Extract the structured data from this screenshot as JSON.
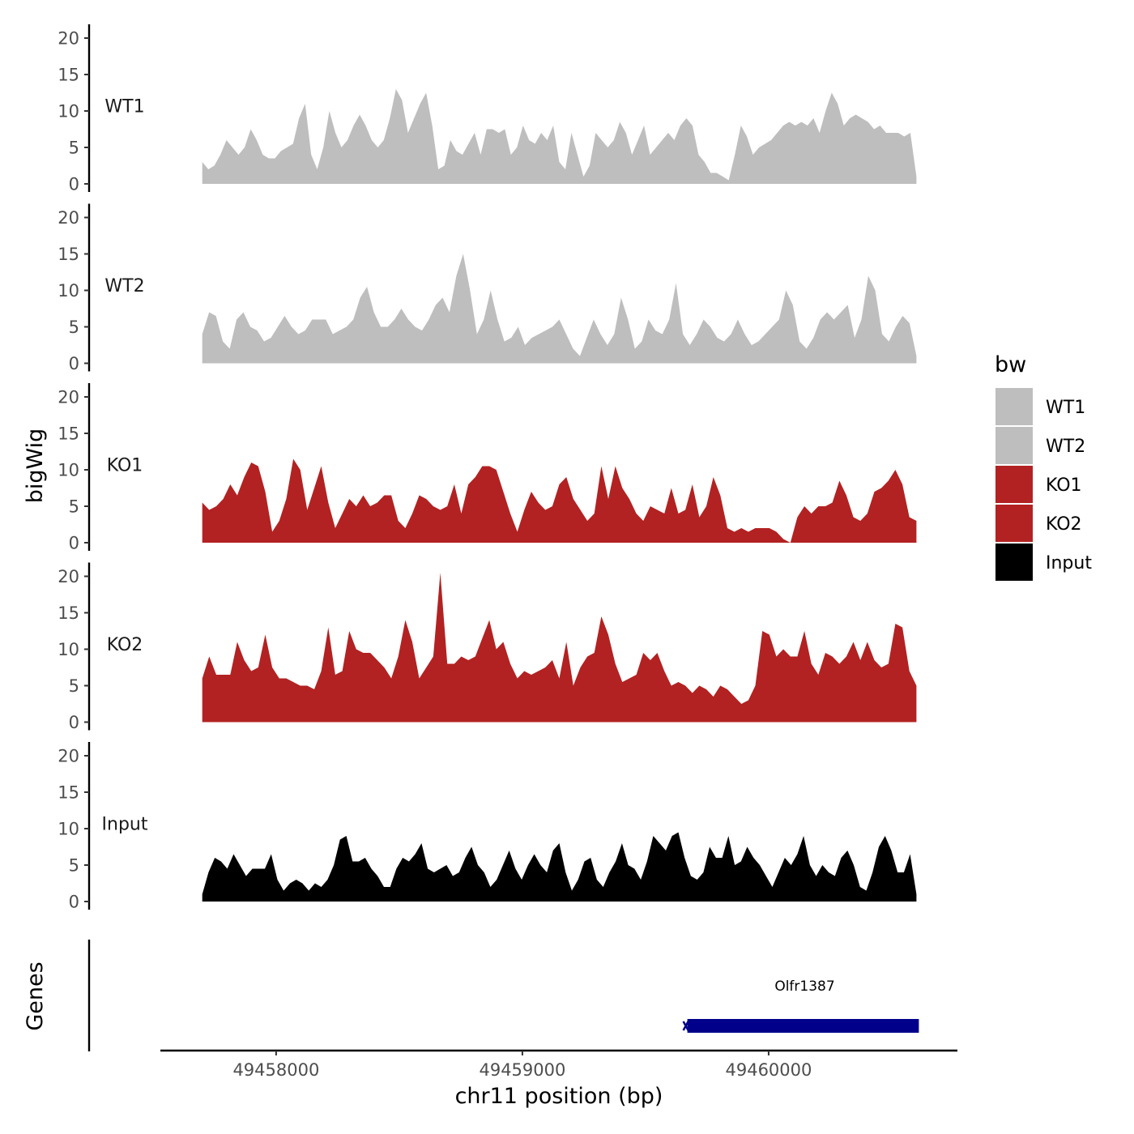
{
  "chart_data": {
    "type": "area",
    "xlabel": "chr11 position (bp)",
    "ylabel": "bigWig",
    "genes_label": "Genes",
    "xlim": [
      49457530,
      49460760
    ],
    "ylim": [
      0,
      21
    ],
    "x_ticks": [
      49458000,
      49459000,
      49460000
    ],
    "x_tick_labels": [
      "49458000",
      "49459000",
      "49460000"
    ],
    "y_ticks": [
      0,
      5,
      10,
      15,
      20
    ],
    "y_tick_labels": [
      "0",
      "5",
      "10",
      "15",
      "20"
    ],
    "x_start": 49457700,
    "x_end": 49460600,
    "legend": {
      "title": "bw",
      "position": "right",
      "entries": [
        {
          "label": "WT1",
          "color": "#bebebe"
        },
        {
          "label": "WT2",
          "color": "#bebebe"
        },
        {
          "label": "KO1",
          "color": "#b22222"
        },
        {
          "label": "KO2",
          "color": "#b22222"
        },
        {
          "label": "Input",
          "color": "#000000"
        }
      ]
    },
    "series": [
      {
        "name": "WT1",
        "color": "#bebebe",
        "values": [
          3,
          2,
          2.5,
          4,
          6,
          5,
          4,
          5,
          7.5,
          6,
          4,
          3.5,
          3.5,
          4.5,
          5,
          5.5,
          9,
          11,
          4,
          2,
          5,
          10,
          7,
          5,
          6,
          8,
          9.5,
          8,
          6,
          5,
          6,
          9,
          13,
          11.5,
          7,
          9,
          11,
          12.5,
          8,
          2,
          2.5,
          6,
          4.5,
          4,
          5.5,
          7,
          4,
          7.5,
          7.5,
          7,
          7.5,
          4,
          5,
          8,
          6,
          5.5,
          7,
          6,
          8,
          3,
          2,
          7,
          4,
          1,
          2.5,
          7,
          6,
          5,
          6,
          8.5,
          7,
          4,
          6,
          8,
          4,
          5,
          6,
          7,
          6,
          8,
          9,
          8,
          4,
          3,
          1.5,
          1.5,
          1,
          0.5,
          4,
          8,
          6.5,
          4,
          5,
          5.5,
          6,
          7,
          8,
          8.5,
          8,
          8.5,
          8,
          9,
          7,
          10,
          12.5,
          11,
          8,
          9,
          9.5,
          9,
          8.5,
          7.5,
          8,
          7,
          7,
          7,
          6.5,
          7,
          1
        ]
      },
      {
        "name": "WT2",
        "color": "#bebebe",
        "values": [
          4,
          7,
          6.5,
          3,
          2,
          6,
          7,
          5,
          4.5,
          3,
          3.5,
          5,
          6.5,
          5,
          4,
          4.5,
          6,
          6,
          6,
          4,
          4.5,
          5,
          6,
          9,
          10.5,
          7,
          5,
          5,
          6,
          7.5,
          6,
          5,
          4.5,
          6,
          8,
          9,
          7,
          12,
          15,
          10,
          4,
          6,
          10,
          6,
          3,
          3.5,
          5,
          2.5,
          3.5,
          4,
          4.5,
          5,
          6,
          4,
          2,
          1,
          3.5,
          6,
          4,
          2.5,
          4,
          9,
          6,
          2,
          3,
          6,
          4.5,
          4,
          6,
          11,
          4,
          2.5,
          4,
          6,
          5,
          3.5,
          3,
          4,
          6,
          4,
          2.5,
          3,
          4,
          5,
          6,
          10,
          8,
          3,
          2,
          3.5,
          6,
          7,
          6,
          7,
          8,
          3.5,
          6,
          12,
          10,
          4,
          3,
          5,
          6.5,
          5.5,
          1
        ]
      },
      {
        "name": "KO1",
        "color": "#b22222",
        "values": [
          5.5,
          4.5,
          5,
          6,
          8,
          6.5,
          9,
          11,
          10.5,
          7,
          1.5,
          3,
          6,
          11.5,
          10,
          4.5,
          7.5,
          10.5,
          5.5,
          2,
          4,
          6,
          5,
          6.5,
          5,
          5.5,
          6.5,
          6.5,
          3,
          2,
          4,
          6.5,
          6,
          5,
          4.5,
          5,
          8,
          4,
          8,
          9,
          10.5,
          10.5,
          10,
          7,
          4,
          1.5,
          4.5,
          7,
          5.5,
          4.5,
          5,
          8,
          9,
          6,
          4.5,
          3,
          4,
          10.5,
          6,
          10.5,
          7.5,
          6,
          4,
          3,
          5,
          4.5,
          4,
          7.5,
          4,
          4.5,
          8,
          3.5,
          5,
          9,
          6.5,
          2,
          1.5,
          2,
          1.5,
          2,
          2,
          2,
          1.5,
          0.5,
          0,
          3.5,
          5,
          4,
          5,
          5,
          5.5,
          8.5,
          6.5,
          3.5,
          3,
          4,
          7,
          7.5,
          8.5,
          10,
          8,
          3.5,
          3
        ]
      },
      {
        "name": "KO2",
        "color": "#b22222",
        "values": [
          6,
          9,
          6.5,
          6.5,
          6.5,
          11,
          8.5,
          7,
          7.5,
          12,
          7.5,
          6,
          6,
          5.5,
          5,
          5,
          4.5,
          7,
          13,
          6.5,
          7,
          12.5,
          10,
          9.5,
          9.5,
          8.5,
          7.5,
          6,
          9,
          14,
          11,
          6,
          7.5,
          9,
          20.5,
          8,
          8,
          9,
          8.5,
          9,
          11.5,
          14,
          10,
          11,
          8,
          6,
          7,
          6.5,
          7,
          7.5,
          8.5,
          6,
          11,
          5,
          7.5,
          9,
          9.5,
          14.5,
          12,
          8,
          5.5,
          6,
          6.5,
          9.5,
          8.5,
          9.5,
          7,
          5,
          5.5,
          5,
          4,
          5,
          4.5,
          3.5,
          5,
          4.5,
          3.5,
          2.5,
          3,
          5,
          12.5,
          12,
          9,
          10,
          9,
          9,
          12.5,
          8,
          6.5,
          9.5,
          9,
          8,
          9,
          11,
          8.5,
          11,
          8.5,
          7.5,
          8,
          13.5,
          13,
          7,
          5
        ]
      },
      {
        "name": "Input",
        "color": "#000000",
        "values": [
          1,
          4,
          6,
          5.5,
          4.5,
          6.5,
          5,
          3.5,
          4.5,
          4.5,
          4.5,
          6.5,
          3,
          1.5,
          2.5,
          3,
          2.5,
          1.5,
          2.5,
          2,
          3,
          5,
          8.5,
          9,
          5.5,
          5.5,
          6,
          4.5,
          3.5,
          2,
          2,
          4.5,
          6,
          5.5,
          6.5,
          8,
          4.5,
          4,
          4.5,
          5,
          3.5,
          4,
          6,
          7.5,
          5,
          4,
          2,
          3,
          5,
          7,
          4.5,
          3,
          5,
          6.5,
          5,
          4,
          7,
          8,
          4,
          1.5,
          3,
          5.5,
          6,
          3,
          2,
          4,
          5.5,
          8,
          5,
          4.5,
          3,
          5.5,
          9,
          8,
          7,
          9,
          9.5,
          6,
          3.5,
          3,
          4,
          7.5,
          6,
          6,
          9,
          5,
          5.5,
          7.5,
          6,
          5,
          3.5,
          2,
          4,
          6,
          5,
          6.5,
          9,
          5,
          3.5,
          5,
          4,
          3.5,
          6,
          7,
          5,
          2,
          1.5,
          4,
          7.5,
          9,
          7,
          4,
          4,
          6.5,
          1
        ]
      }
    ],
    "genes": [
      {
        "name": "Olfr1387",
        "start": 49459670,
        "end": 49460610,
        "strand": "+",
        "color": "#00008b"
      }
    ]
  }
}
